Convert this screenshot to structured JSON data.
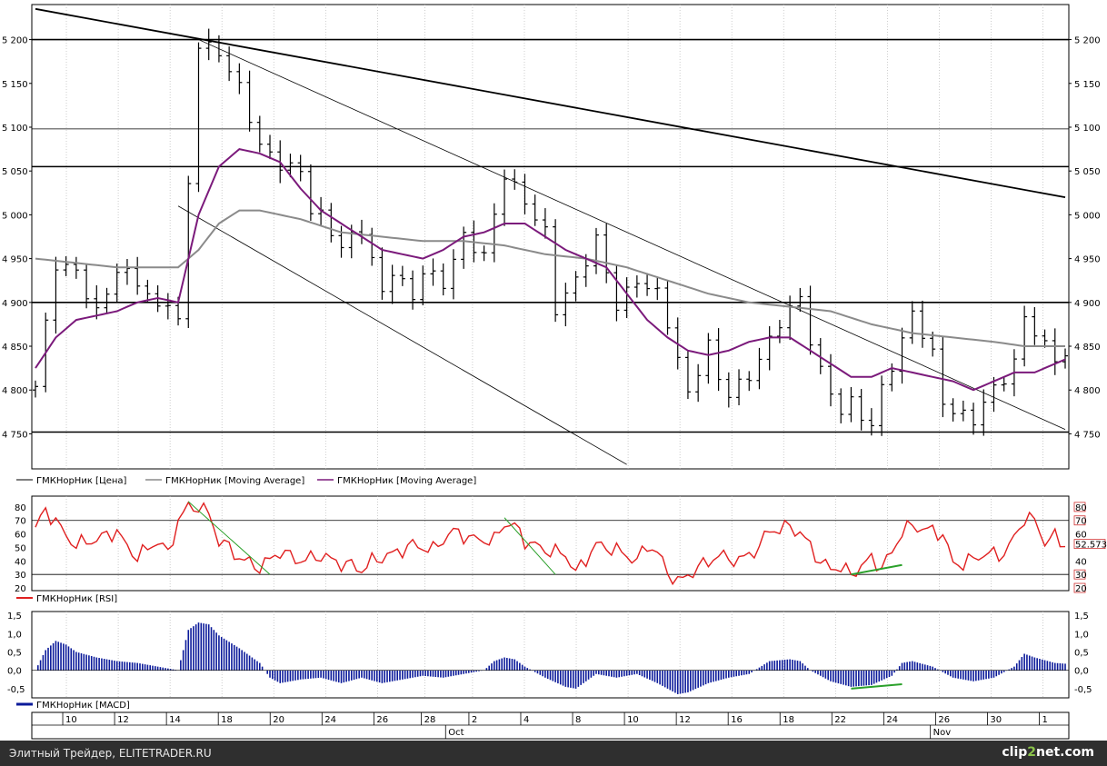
{
  "chart_data": [
    {
      "type": "candlestick",
      "panel": "price",
      "ylim": [
        4710,
        5240
      ],
      "yticks": [
        "5 200",
        "5 150",
        "5 100",
        "5 050",
        "5 000",
        "4 950",
        "4 900",
        "4 850",
        "4 800",
        "4 750"
      ],
      "ytick_values": [
        5200,
        5150,
        5100,
        5050,
        5000,
        4950,
        4900,
        4850,
        4800,
        4750
      ],
      "horizontal_lines": [
        5200,
        5098,
        5055,
        4900,
        4752
      ],
      "legend": [
        "ГМКНорНик [Цена]",
        "ГМКНорНик [Moving Average]",
        "ГМКНорНик [Moving Average]"
      ],
      "colors": {
        "price": "#000000",
        "ma_slow": "#8a8a8a",
        "ma_fast": "#7b1a7b"
      },
      "price_anchors": [
        [
          0,
          4800
        ],
        [
          2,
          4945
        ],
        [
          4,
          4940
        ],
        [
          6,
          4890
        ],
        [
          8,
          4935
        ],
        [
          10,
          4920
        ],
        [
          12,
          4890
        ],
        [
          13,
          4905
        ],
        [
          14,
          4880
        ],
        [
          16,
          5200
        ],
        [
          18,
          5185
        ],
        [
          20,
          5140
        ],
        [
          22,
          5075
        ],
        [
          24,
          5060
        ],
        [
          26,
          5055
        ],
        [
          27,
          5010
        ],
        [
          28,
          5000
        ],
        [
          30,
          4960
        ],
        [
          32,
          4980
        ],
        [
          34,
          4910
        ],
        [
          35,
          4940
        ],
        [
          37,
          4910
        ],
        [
          38,
          4940
        ],
        [
          40,
          4920
        ],
        [
          42,
          4970
        ],
        [
          44,
          4950
        ],
        [
          46,
          5050
        ],
        [
          48,
          5020
        ],
        [
          50,
          4980
        ],
        [
          51,
          4890
        ],
        [
          53,
          4920
        ],
        [
          55,
          4970
        ],
        [
          57,
          4900
        ],
        [
          59,
          4930
        ],
        [
          61,
          4910
        ],
        [
          62,
          4875
        ],
        [
          63,
          4830
        ],
        [
          64,
          4790
        ],
        [
          66,
          4850
        ],
        [
          67,
          4815
        ],
        [
          68,
          4800
        ],
        [
          70,
          4820
        ],
        [
          72,
          4855
        ],
        [
          73,
          4875
        ],
        [
          75,
          4900
        ],
        [
          76,
          4855
        ],
        [
          77,
          4820
        ],
        [
          78,
          4800
        ],
        [
          79,
          4780
        ],
        [
          80,
          4790
        ],
        [
          81,
          4775
        ],
        [
          82,
          4760
        ],
        [
          83,
          4800
        ],
        [
          85,
          4850
        ],
        [
          86,
          4885
        ],
        [
          88,
          4840
        ],
        [
          89,
          4790
        ],
        [
          90,
          4780
        ],
        [
          91,
          4775
        ],
        [
          92,
          4770
        ],
        [
          94,
          4800
        ],
        [
          95,
          4810
        ],
        [
          96,
          4825
        ],
        [
          97,
          4880
        ],
        [
          99,
          4850
        ],
        [
          100,
          4840
        ],
        [
          101,
          4845
        ]
      ],
      "ma_slow_anchors": [
        [
          0,
          4950
        ],
        [
          4,
          4945
        ],
        [
          8,
          4940
        ],
        [
          12,
          4940
        ],
        [
          14,
          4940
        ],
        [
          16,
          4960
        ],
        [
          18,
          4990
        ],
        [
          20,
          5005
        ],
        [
          22,
          5005
        ],
        [
          26,
          4995
        ],
        [
          30,
          4980
        ],
        [
          34,
          4975
        ],
        [
          38,
          4970
        ],
        [
          42,
          4970
        ],
        [
          46,
          4965
        ],
        [
          50,
          4955
        ],
        [
          54,
          4950
        ],
        [
          58,
          4940
        ],
        [
          62,
          4925
        ],
        [
          66,
          4910
        ],
        [
          70,
          4900
        ],
        [
          74,
          4895
        ],
        [
          78,
          4890
        ],
        [
          82,
          4875
        ],
        [
          86,
          4865
        ],
        [
          90,
          4860
        ],
        [
          94,
          4855
        ],
        [
          97,
          4850
        ],
        [
          101,
          4850
        ]
      ],
      "ma_fast_anchors": [
        [
          0,
          4825
        ],
        [
          2,
          4860
        ],
        [
          4,
          4880
        ],
        [
          6,
          4885
        ],
        [
          8,
          4890
        ],
        [
          10,
          4900
        ],
        [
          12,
          4905
        ],
        [
          14,
          4900
        ],
        [
          16,
          5000
        ],
        [
          18,
          5055
        ],
        [
          20,
          5075
        ],
        [
          22,
          5070
        ],
        [
          24,
          5060
        ],
        [
          26,
          5030
        ],
        [
          28,
          5005
        ],
        [
          30,
          4990
        ],
        [
          32,
          4975
        ],
        [
          34,
          4960
        ],
        [
          36,
          4955
        ],
        [
          38,
          4950
        ],
        [
          40,
          4960
        ],
        [
          42,
          4975
        ],
        [
          44,
          4980
        ],
        [
          46,
          4990
        ],
        [
          48,
          4990
        ],
        [
          50,
          4975
        ],
        [
          52,
          4960
        ],
        [
          54,
          4950
        ],
        [
          56,
          4940
        ],
        [
          58,
          4910
        ],
        [
          60,
          4880
        ],
        [
          62,
          4860
        ],
        [
          64,
          4845
        ],
        [
          66,
          4840
        ],
        [
          68,
          4845
        ],
        [
          70,
          4855
        ],
        [
          72,
          4860
        ],
        [
          74,
          4860
        ],
        [
          76,
          4845
        ],
        [
          78,
          4830
        ],
        [
          80,
          4815
        ],
        [
          82,
          4815
        ],
        [
          84,
          4825
        ],
        [
          86,
          4820
        ],
        [
          88,
          4815
        ],
        [
          90,
          4810
        ],
        [
          92,
          4800
        ],
        [
          94,
          4810
        ],
        [
          96,
          4820
        ],
        [
          98,
          4820
        ],
        [
          101,
          4835
        ]
      ],
      "trendlines": [
        [
          [
            0,
            5235
          ],
          [
            101,
            5020
          ]
        ],
        [
          [
            14,
            5010
          ],
          [
            58,
            4715
          ]
        ],
        [
          [
            16,
            5200
          ],
          [
            101,
            4755
          ]
        ]
      ]
    },
    {
      "type": "line",
      "panel": "rsi",
      "name": "ГМКНорНик [RSI]",
      "ylim": [
        18,
        88
      ],
      "yticks": [
        "80",
        "70",
        "60",
        "50",
        "40",
        "30",
        "20"
      ],
      "ytick_values": [
        80,
        70,
        60,
        50,
        40,
        30,
        20
      ],
      "right_labels": [
        "80",
        "70",
        "60",
        "52.573",
        "40",
        "30",
        "20"
      ],
      "current_value": 52.573,
      "horizontal_lines": [
        70,
        30
      ],
      "color": "#e02020",
      "anchors": [
        [
          0,
          65
        ],
        [
          1,
          77
        ],
        [
          2,
          70
        ],
        [
          3,
          58
        ],
        [
          4,
          52
        ],
        [
          6,
          56
        ],
        [
          8,
          62
        ],
        [
          9,
          50
        ],
        [
          10,
          43
        ],
        [
          12,
          55
        ],
        [
          13,
          45
        ],
        [
          14,
          70
        ],
        [
          15,
          80
        ],
        [
          16,
          80
        ],
        [
          17,
          75
        ],
        [
          18,
          55
        ],
        [
          19,
          50
        ],
        [
          20,
          42
        ],
        [
          22,
          35
        ],
        [
          24,
          47
        ],
        [
          26,
          40
        ],
        [
          28,
          44
        ],
        [
          30,
          38
        ],
        [
          31,
          37
        ],
        [
          32,
          33
        ],
        [
          33,
          40
        ],
        [
          35,
          45
        ],
        [
          37,
          52
        ],
        [
          39,
          48
        ],
        [
          40,
          56
        ],
        [
          41,
          62
        ],
        [
          43,
          56
        ],
        [
          45,
          55
        ],
        [
          46,
          68
        ],
        [
          47,
          66
        ],
        [
          48,
          55
        ],
        [
          50,
          48
        ],
        [
          52,
          45
        ],
        [
          53,
          31
        ],
        [
          55,
          52
        ],
        [
          57,
          48
        ],
        [
          59,
          40
        ],
        [
          60,
          52
        ],
        [
          61,
          46
        ],
        [
          62,
          32
        ],
        [
          63,
          24
        ],
        [
          65,
          35
        ],
        [
          67,
          44
        ],
        [
          69,
          40
        ],
        [
          71,
          50
        ],
        [
          72,
          64
        ],
        [
          73,
          62
        ],
        [
          74,
          67
        ],
        [
          76,
          52
        ],
        [
          77,
          38
        ],
        [
          78,
          35
        ],
        [
          79,
          35
        ],
        [
          80,
          30
        ],
        [
          82,
          42
        ],
        [
          83,
          35
        ],
        [
          84,
          46
        ],
        [
          85,
          62
        ],
        [
          86,
          66
        ],
        [
          87,
          64
        ],
        [
          89,
          60
        ],
        [
          90,
          38
        ],
        [
          91,
          38
        ],
        [
          93,
          45
        ],
        [
          95,
          45
        ],
        [
          96,
          57
        ],
        [
          97,
          72
        ],
        [
          98,
          70
        ],
        [
          99,
          54
        ],
        [
          100,
          58
        ],
        [
          101,
          52
        ]
      ],
      "trendlines": [
        [
          [
            15,
            84
          ],
          [
            23,
            30
          ]
        ],
        [
          [
            46,
            72
          ],
          [
            51,
            30
          ]
        ],
        [
          [
            80,
            30
          ],
          [
            85,
            37
          ]
        ]
      ],
      "trendline_colors": [
        "#2aa02a",
        "#2aa02a",
        "#2aa02a"
      ]
    },
    {
      "type": "area",
      "panel": "macd",
      "name": "ГМКНорНик [MACD]",
      "ylim": [
        -0.75,
        1.6
      ],
      "yticks": [
        "1,5",
        "1,0",
        "0,5",
        "0,0",
        "-0,5"
      ],
      "ytick_values": [
        1.5,
        1.0,
        0.5,
        0.0,
        -0.5
      ],
      "color": "#0b1a9a",
      "anchors": [
        [
          0,
          0
        ],
        [
          1,
          0.55
        ],
        [
          2,
          0.8
        ],
        [
          3,
          0.7
        ],
        [
          4,
          0.5
        ],
        [
          6,
          0.35
        ],
        [
          8,
          0.25
        ],
        [
          10,
          0.2
        ],
        [
          12,
          0.1
        ],
        [
          14,
          0.0
        ],
        [
          15,
          1.1
        ],
        [
          16,
          1.3
        ],
        [
          17,
          1.25
        ],
        [
          18,
          0.95
        ],
        [
          20,
          0.6
        ],
        [
          22,
          0.2
        ],
        [
          23,
          -0.2
        ],
        [
          24,
          -0.35
        ],
        [
          26,
          -0.25
        ],
        [
          28,
          -0.2
        ],
        [
          30,
          -0.35
        ],
        [
          32,
          -0.2
        ],
        [
          34,
          -0.35
        ],
        [
          36,
          -0.25
        ],
        [
          38,
          -0.15
        ],
        [
          40,
          -0.2
        ],
        [
          42,
          -0.1
        ],
        [
          44,
          0.0
        ],
        [
          45,
          0.25
        ],
        [
          46,
          0.35
        ],
        [
          47,
          0.3
        ],
        [
          48,
          0.1
        ],
        [
          50,
          -0.2
        ],
        [
          52,
          -0.45
        ],
        [
          53,
          -0.5
        ],
        [
          55,
          -0.1
        ],
        [
          57,
          -0.2
        ],
        [
          59,
          -0.1
        ],
        [
          61,
          -0.35
        ],
        [
          63,
          -0.65
        ],
        [
          64,
          -0.6
        ],
        [
          66,
          -0.35
        ],
        [
          68,
          -0.2
        ],
        [
          70,
          -0.1
        ],
        [
          72,
          0.25
        ],
        [
          74,
          0.3
        ],
        [
          75,
          0.25
        ],
        [
          76,
          0.0
        ],
        [
          78,
          -0.3
        ],
        [
          80,
          -0.45
        ],
        [
          82,
          -0.4
        ],
        [
          84,
          -0.15
        ],
        [
          85,
          0.2
        ],
        [
          86,
          0.25
        ],
        [
          88,
          0.1
        ],
        [
          90,
          -0.2
        ],
        [
          92,
          -0.3
        ],
        [
          94,
          -0.2
        ],
        [
          96,
          0.1
        ],
        [
          97,
          0.45
        ],
        [
          98,
          0.35
        ],
        [
          100,
          0.2
        ],
        [
          101,
          0.18
        ]
      ],
      "trendlines": [
        [
          [
            80,
            -0.5
          ],
          [
            85,
            -0.38
          ]
        ]
      ],
      "trendline_colors": [
        "#2aa02a"
      ]
    }
  ],
  "x_axis": {
    "day_labels": [
      "10",
      "12",
      "14",
      "18",
      "20",
      "24",
      "26",
      "28",
      "2",
      "4",
      "8",
      "10",
      "12",
      "16",
      "18",
      "22",
      "24",
      "26",
      "30",
      "1"
    ],
    "day_positions": [
      4,
      10,
      16,
      22,
      28,
      34,
      40,
      45.5,
      51,
      57,
      63,
      69,
      75,
      81,
      87,
      93,
      99,
      105,
      111,
      117
    ],
    "month_labels": [
      "Oct",
      "Nov"
    ],
    "month_positions": [
      48.3,
      104.4
    ]
  },
  "footer": {
    "left_text": "Элитный Трейдер, ELITETRADER.RU",
    "brand_prefix": "clip",
    "brand_num": "2",
    "brand_suffix": "net",
    "brand_tld": ".com"
  }
}
